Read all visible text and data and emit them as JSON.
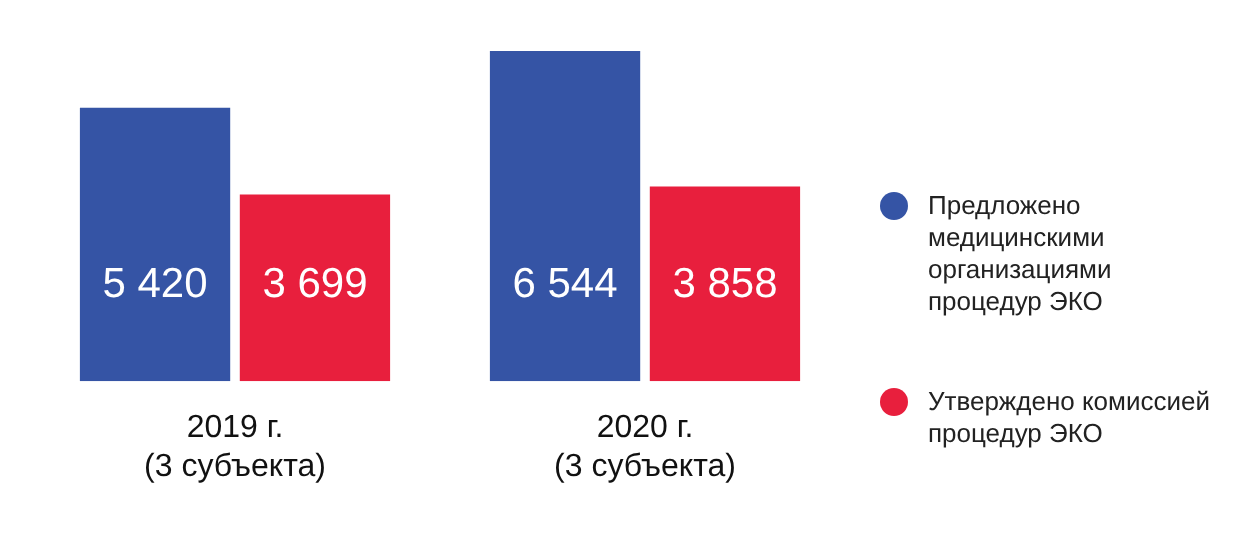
{
  "chart_data": {
    "type": "bar",
    "categories": [
      "2019 г.\n(3 субъекта)",
      "2020 г.\n(3 субъекта)"
    ],
    "series": [
      {
        "name": "Предложено медицинскими организациями процедур ЭКО",
        "color": "#3554a5",
        "values": [
          5420,
          6544
        ],
        "value_labels": [
          "5 420",
          "6 544"
        ]
      },
      {
        "name": "Утверждено комиссией процедур ЭКО",
        "color": "#e81f3d",
        "values": [
          3699,
          3858
        ],
        "value_labels": [
          "3 699",
          "3 858"
        ]
      }
    ],
    "legend": "right",
    "grid": false
  }
}
